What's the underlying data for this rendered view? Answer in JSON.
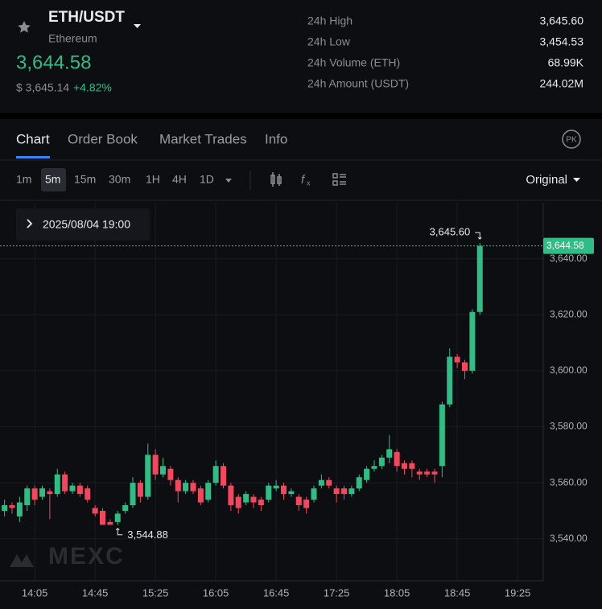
{
  "header": {
    "symbol": "ETH/USDT",
    "name": "Ethereum",
    "price": "3,644.58",
    "usd_price": "$ 3,645.14",
    "change": "+4.82%",
    "stats": [
      {
        "label": "24h High",
        "value": "3,645.60"
      },
      {
        "label": "24h Low",
        "value": "3,454.53"
      },
      {
        "label": "24h Volume (ETH)",
        "value": "68.99K"
      },
      {
        "label": "24h Amount (USDT)",
        "value": "244.02M"
      }
    ]
  },
  "tabs": [
    "Chart",
    "Order Book",
    "Market Trades",
    "Info"
  ],
  "badge": "PK",
  "intervals": [
    "1m",
    "5m",
    "15m",
    "30m",
    "1H",
    "4H",
    "1D"
  ],
  "price_mode": "Original",
  "chart_data": {
    "type": "candlestick",
    "date_label": "2025/08/04 19:00",
    "watermark": "MEXC",
    "x": [
      "13:45",
      "13:50",
      "13:55",
      "14:00",
      "14:05",
      "14:10",
      "14:15",
      "14:20",
      "14:25",
      "14:30",
      "14:35",
      "14:40",
      "14:45",
      "14:50",
      "14:55",
      "15:00",
      "15:05",
      "15:10",
      "15:15",
      "15:20",
      "15:25",
      "15:30",
      "15:35",
      "15:40",
      "15:45",
      "15:50",
      "15:55",
      "16:00",
      "16:05",
      "16:10",
      "16:15",
      "16:20",
      "16:25",
      "16:30",
      "16:35",
      "16:40",
      "16:45",
      "16:50",
      "16:55",
      "17:00",
      "17:05",
      "17:10",
      "17:15",
      "17:20",
      "17:25",
      "17:30",
      "17:35",
      "17:40",
      "17:45",
      "17:50",
      "17:55",
      "18:00",
      "18:05",
      "18:10",
      "18:15",
      "18:20",
      "18:25",
      "18:30",
      "18:35",
      "18:40",
      "18:45",
      "18:50",
      "18:55",
      "19:00"
    ],
    "open": [
      3550,
      3552,
      3548,
      3552,
      3558,
      3555,
      3557,
      3556,
      3563,
      3557,
      3559,
      3558,
      3551,
      3550,
      3546,
      3546,
      3550,
      3552,
      3560,
      3555,
      3570,
      3563,
      3565,
      3561,
      3557,
      3560,
      3558,
      3554,
      3560,
      3566,
      3559,
      3555,
      3553,
      3555,
      3554,
      3554,
      3558,
      3559,
      3556,
      3555,
      3554,
      3554,
      3559,
      3561,
      3558,
      3558,
      3556,
      3558,
      3561,
      3565,
      3566,
      3569,
      3571,
      3567,
      3567,
      3564,
      3564,
      3564,
      3566,
      3588,
      3605,
      3603,
      3600,
      3621
    ],
    "high": [
      3554,
      3553,
      3555,
      3559,
      3559,
      3559,
      3558,
      3565,
      3564,
      3560,
      3560,
      3559,
      3552,
      3551,
      3547,
      3550,
      3553,
      3562,
      3561,
      3574,
      3572,
      3569,
      3566,
      3562,
      3561,
      3561,
      3559,
      3561,
      3568,
      3567,
      3560,
      3556,
      3557,
      3556,
      3555,
      3560,
      3561,
      3560,
      3558,
      3556,
      3555,
      3559,
      3563,
      3562,
      3559,
      3559,
      3559,
      3563,
      3566,
      3568,
      3570,
      3577,
      3572,
      3568,
      3568,
      3565,
      3565,
      3565,
      3589,
      3608,
      3606,
      3604,
      3622,
      3645.6
    ],
    "low": [
      3548,
      3549,
      3546,
      3550,
      3552,
      3554,
      3547,
      3555,
      3556,
      3556,
      3555,
      3553,
      3548,
      3545,
      3545,
      3544.88,
      3549,
      3551,
      3553,
      3554,
      3561,
      3562,
      3559,
      3553,
      3556,
      3556,
      3552,
      3553,
      3559,
      3558,
      3550,
      3549,
      3552,
      3551,
      3550,
      3553,
      3557,
      3554,
      3555,
      3550,
      3549,
      3553,
      3558,
      3558,
      3553,
      3554,
      3555,
      3557,
      3560,
      3564,
      3565,
      3567,
      3564,
      3563,
      3562,
      3561,
      3562,
      3560,
      3562,
      3587,
      3601,
      3597,
      3599,
      3620
    ],
    "close": [
      3552,
      3551,
      3553,
      3558,
      3554,
      3558,
      3556,
      3563,
      3557,
      3559,
      3556,
      3554,
      3549,
      3545,
      3545,
      3549,
      3552,
      3560,
      3555,
      3570,
      3563,
      3566,
      3561,
      3557,
      3560,
      3557,
      3553,
      3560,
      3566,
      3559,
      3552,
      3551,
      3556,
      3553,
      3552,
      3559,
      3559,
      3556,
      3557,
      3552,
      3551,
      3558,
      3561,
      3559,
      3556,
      3556,
      3558,
      3562,
      3565,
      3566,
      3569,
      3572,
      3566,
      3565,
      3565,
      3563,
      3563,
      3563,
      3588,
      3605,
      3603,
      3600,
      3621,
      3644.58
    ],
    "up_color": "#2ebd85",
    "down_color": "#f6465d",
    "xlim": [
      "13:42",
      "19:42"
    ],
    "xticks": [
      "14:05",
      "14:45",
      "15:25",
      "16:05",
      "16:45",
      "17:25",
      "18:05",
      "18:45",
      "19:25"
    ],
    "ylim": [
      3525,
      3660
    ],
    "yticks": [
      {
        "value": 3540,
        "label": "3,540.00"
      },
      {
        "value": 3560,
        "label": "3,560.00"
      },
      {
        "value": 3580,
        "label": "3,580.00"
      },
      {
        "value": 3600,
        "label": "3,600.00"
      },
      {
        "value": 3620,
        "label": "3,620.00"
      },
      {
        "value": 3640,
        "label": "3,640.00"
      }
    ],
    "grid": true,
    "high_label": "3,645.60",
    "low_label": "3,544.88",
    "last_price": {
      "value": 3644.58,
      "label": "3,644.58"
    }
  }
}
